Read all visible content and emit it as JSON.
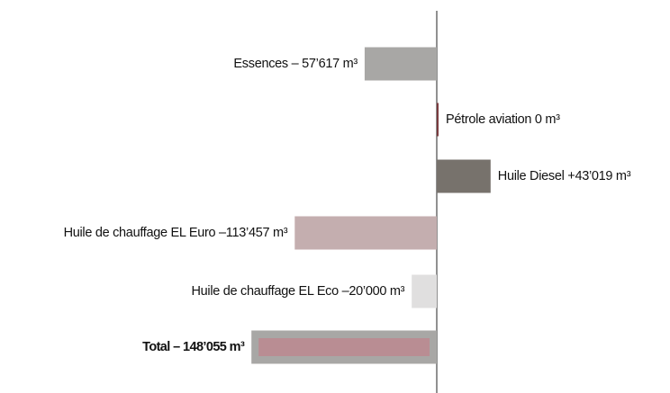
{
  "chart_data": {
    "type": "bar",
    "orientation": "horizontal",
    "categories": [
      "Essences",
      "Pétrole aviation",
      "Huile Diesel",
      "Huile de chauffage EL Euro",
      "Huile de chauffage EL Eco",
      "Total"
    ],
    "values": [
      -57617,
      0,
      43019,
      -113457,
      -20000,
      -148055
    ],
    "value_labels": [
      "– 57’617 m³",
      "0 m³",
      "+43’019 m³",
      "–113’457 m³",
      "–20’000 m³",
      "– 148’055 m³"
    ],
    "colors": [
      "#a8a7a5",
      "#7a3b3f",
      "#77726c",
      "#c4aeaf",
      "#e0dfdf",
      "#b98d93"
    ]
  }
}
